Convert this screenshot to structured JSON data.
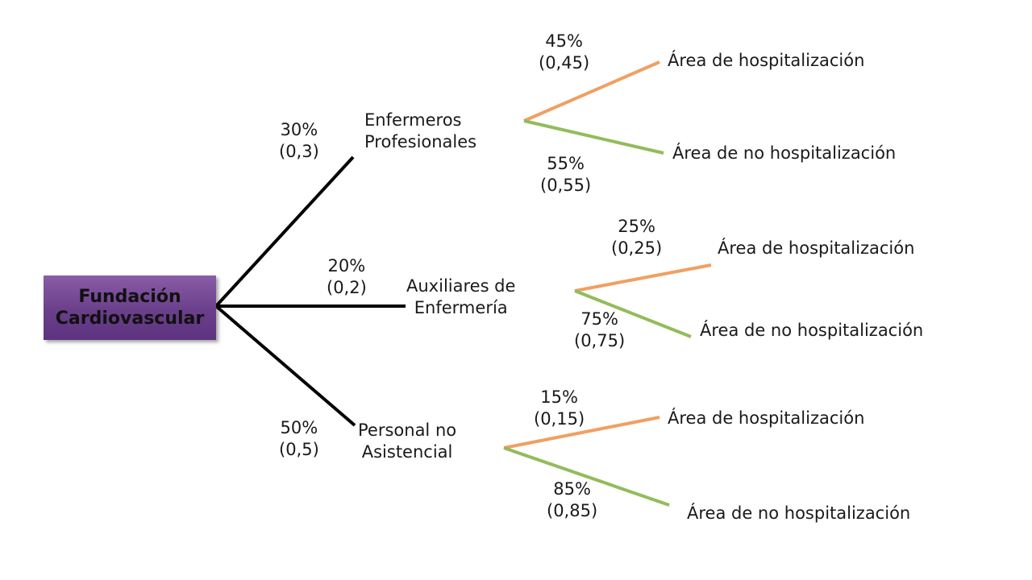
{
  "root": {
    "line1": "Fundación",
    "line2": "Cardiovascular"
  },
  "branches": [
    {
      "name_line1": "Enfermeros",
      "name_line2": "Profesionales",
      "pct": "30%",
      "dec": "(0,3)",
      "leaves": [
        {
          "label": "Área de hospitalización",
          "pct": "45%",
          "dec": "(0,45)",
          "color": "#f0a062"
        },
        {
          "label": "Área de no hospitalización",
          "pct": "55%",
          "dec": "(0,55)",
          "color": "#92bc5a"
        }
      ]
    },
    {
      "name_line1": "Auxiliares de",
      "name_line2": "Enfermería",
      "pct": "20%",
      "dec": "(0,2)",
      "leaves": [
        {
          "label": "Área de hospitalización",
          "pct": "25%",
          "dec": "(0,25)",
          "color": "#f0a062"
        },
        {
          "label": "Área de no hospitalización",
          "pct": "75%",
          "dec": "(0,75)",
          "color": "#92bc5a"
        }
      ]
    },
    {
      "name_line1": "Personal no",
      "name_line2": "Asistencial",
      "pct": "50%",
      "dec": "(0,5)",
      "leaves": [
        {
          "label": "Área de hospitalización",
          "pct": "15%",
          "dec": "(0,15)",
          "color": "#f0a062"
        },
        {
          "label": "Área de no hospitalización",
          "pct": "85%",
          "dec": "(0,85)",
          "color": "#92bc5a"
        }
      ]
    }
  ],
  "colors": {
    "trunk": "#000000",
    "root_box": "#6a3f8a"
  }
}
